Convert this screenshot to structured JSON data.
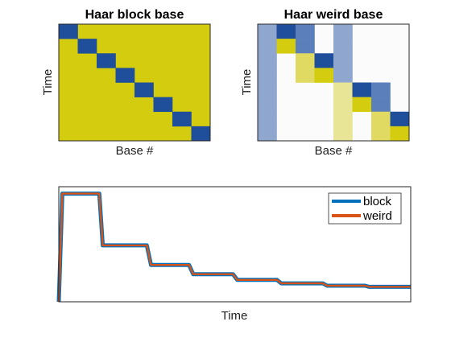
{
  "chart_data": [
    {
      "type": "heatmap",
      "title": "Haar block base",
      "xlabel": "Base #",
      "ylabel": "Time",
      "rows": 8,
      "cols": 8,
      "background_color": "#d4cc0e",
      "cells": [
        {
          "row": 0,
          "col": 0,
          "color": "#1f4e9b"
        },
        {
          "row": 1,
          "col": 1,
          "color": "#1f4e9b"
        },
        {
          "row": 2,
          "col": 2,
          "color": "#1f4e9b"
        },
        {
          "row": 3,
          "col": 3,
          "color": "#1f4e9b"
        },
        {
          "row": 4,
          "col": 4,
          "color": "#1f4e9b"
        },
        {
          "row": 5,
          "col": 5,
          "color": "#1f4e9b"
        },
        {
          "row": 6,
          "col": 6,
          "color": "#1f4e9b"
        },
        {
          "row": 7,
          "col": 7,
          "color": "#1f4e9b"
        }
      ]
    },
    {
      "type": "heatmap",
      "title": "Haar weird base",
      "xlabel": "Base #",
      "ylabel": "Time",
      "rows": 8,
      "cols": 8,
      "background_color": "#fbfbfb",
      "cells": [
        {
          "row": 0,
          "col": 0,
          "color": "#8fa6ce"
        },
        {
          "row": 1,
          "col": 0,
          "color": "#8fa6ce"
        },
        {
          "row": 2,
          "col": 0,
          "color": "#8fa6ce"
        },
        {
          "row": 3,
          "col": 0,
          "color": "#8fa6ce"
        },
        {
          "row": 4,
          "col": 0,
          "color": "#8fa6ce"
        },
        {
          "row": 5,
          "col": 0,
          "color": "#8fa6ce"
        },
        {
          "row": 6,
          "col": 0,
          "color": "#8fa6ce"
        },
        {
          "row": 7,
          "col": 0,
          "color": "#8fa6ce"
        },
        {
          "row": 0,
          "col": 1,
          "color": "#1f4e9b"
        },
        {
          "row": 1,
          "col": 1,
          "color": "#d4cc0e"
        },
        {
          "row": 0,
          "col": 2,
          "color": "#5b7fbb"
        },
        {
          "row": 1,
          "col": 2,
          "color": "#5b7fbb"
        },
        {
          "row": 2,
          "col": 2,
          "color": "#e0da63"
        },
        {
          "row": 3,
          "col": 2,
          "color": "#e0da63"
        },
        {
          "row": 2,
          "col": 3,
          "color": "#1f4e9b"
        },
        {
          "row": 3,
          "col": 3,
          "color": "#d4cc0e"
        },
        {
          "row": 0,
          "col": 4,
          "color": "#8fa6ce"
        },
        {
          "row": 1,
          "col": 4,
          "color": "#8fa6ce"
        },
        {
          "row": 2,
          "col": 4,
          "color": "#8fa6ce"
        },
        {
          "row": 3,
          "col": 4,
          "color": "#8fa6ce"
        },
        {
          "row": 4,
          "col": 4,
          "color": "#e8e597"
        },
        {
          "row": 5,
          "col": 4,
          "color": "#e8e597"
        },
        {
          "row": 6,
          "col": 4,
          "color": "#e8e597"
        },
        {
          "row": 7,
          "col": 4,
          "color": "#e8e597"
        },
        {
          "row": 4,
          "col": 5,
          "color": "#1f4e9b"
        },
        {
          "row": 5,
          "col": 5,
          "color": "#d4cc0e"
        },
        {
          "row": 4,
          "col": 6,
          "color": "#5b7fbb"
        },
        {
          "row": 5,
          "col": 6,
          "color": "#5b7fbb"
        },
        {
          "row": 6,
          "col": 6,
          "color": "#e0da63"
        },
        {
          "row": 7,
          "col": 6,
          "color": "#e0da63"
        },
        {
          "row": 6,
          "col": 7,
          "color": "#1f4e9b"
        },
        {
          "row": 7,
          "col": 7,
          "color": "#d4cc0e"
        }
      ]
    },
    {
      "type": "line",
      "title": "",
      "xlabel": "Time",
      "ylabel": "",
      "xlim": [
        0,
        1000
      ],
      "ylim": [
        0,
        1.0
      ],
      "grid": false,
      "legend_position": "top-right",
      "series": [
        {
          "name": "block",
          "color": "#0072bd",
          "x": [
            0,
            10,
            20,
            115,
            125,
            250,
            262,
            370,
            382,
            495,
            507,
            620,
            632,
            750,
            762,
            870,
            882,
            1000
          ],
          "y": [
            0,
            0.94,
            0.94,
            0.94,
            0.49,
            0.49,
            0.32,
            0.32,
            0.24,
            0.24,
            0.19,
            0.19,
            0.16,
            0.16,
            0.14,
            0.14,
            0.13,
            0.13
          ]
        },
        {
          "name": "weird",
          "color": "#d95319",
          "x": [
            0,
            10,
            20,
            115,
            125,
            250,
            262,
            370,
            382,
            495,
            507,
            620,
            632,
            750,
            762,
            870,
            882,
            1000
          ],
          "y": [
            0,
            0.94,
            0.94,
            0.94,
            0.49,
            0.49,
            0.32,
            0.32,
            0.24,
            0.24,
            0.19,
            0.19,
            0.16,
            0.16,
            0.14,
            0.14,
            0.13,
            0.13
          ]
        }
      ]
    }
  ]
}
